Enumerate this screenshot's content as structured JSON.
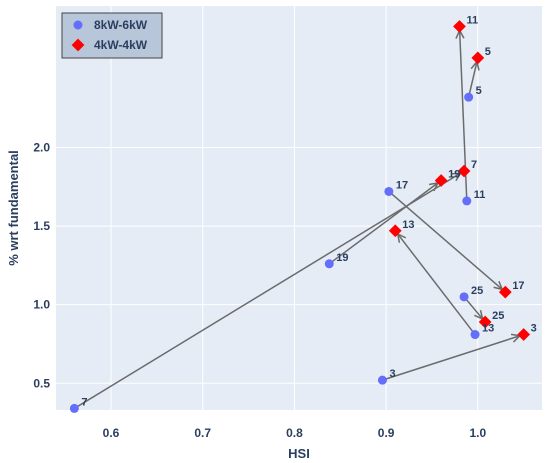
{
  "chart_data": {
    "type": "scatter",
    "title": "",
    "xlabel": "HSI",
    "ylabel": "% wrt fundamental",
    "xlim": [
      0.54,
      1.07
    ],
    "ylim": [
      0.33,
      2.9
    ],
    "xticks": [
      0.6,
      0.7,
      0.8,
      0.9,
      1.0
    ],
    "xtick_labels": [
      "0.6",
      "0.7",
      "0.8",
      "0.9",
      "1.0"
    ],
    "yticks": [
      0.5,
      1.0,
      1.5,
      2.0
    ],
    "ytick_labels": [
      "0.5",
      "1.0",
      "1.5",
      "2.0"
    ],
    "grid": true,
    "legend_position": "top-left",
    "series": [
      {
        "name": "8kW-6kW",
        "marker": "circle",
        "color": "#636efa",
        "points": [
          {
            "label": "7",
            "x": 0.56,
            "y": 0.34
          },
          {
            "label": "3",
            "x": 0.896,
            "y": 0.52
          },
          {
            "label": "19",
            "x": 0.838,
            "y": 1.26
          },
          {
            "label": "17",
            "x": 0.903,
            "y": 1.72
          },
          {
            "label": "13",
            "x": 0.997,
            "y": 0.81
          },
          {
            "label": "25",
            "x": 0.985,
            "y": 1.05
          },
          {
            "label": "11",
            "x": 0.988,
            "y": 1.66
          },
          {
            "label": "5",
            "x": 0.99,
            "y": 2.32
          }
        ]
      },
      {
        "name": "4kW-4kW",
        "marker": "diamond",
        "color": "#ff0000",
        "points": [
          {
            "label": "3",
            "x": 1.05,
            "y": 0.81
          },
          {
            "label": "17",
            "x": 1.03,
            "y": 1.08
          },
          {
            "label": "25",
            "x": 1.008,
            "y": 0.89
          },
          {
            "label": "13",
            "x": 0.91,
            "y": 1.47
          },
          {
            "label": "19",
            "x": 0.96,
            "y": 1.79
          },
          {
            "label": "7",
            "x": 0.985,
            "y": 1.85
          },
          {
            "label": "11",
            "x": 0.98,
            "y": 2.77
          },
          {
            "label": "5",
            "x": 1.0,
            "y": 2.57
          }
        ]
      }
    ],
    "arrows": [
      {
        "harmonic": "7"
      },
      {
        "harmonic": "3"
      },
      {
        "harmonic": "19"
      },
      {
        "harmonic": "17"
      },
      {
        "harmonic": "13"
      },
      {
        "harmonic": "25"
      },
      {
        "harmonic": "11"
      },
      {
        "harmonic": "5"
      }
    ]
  }
}
